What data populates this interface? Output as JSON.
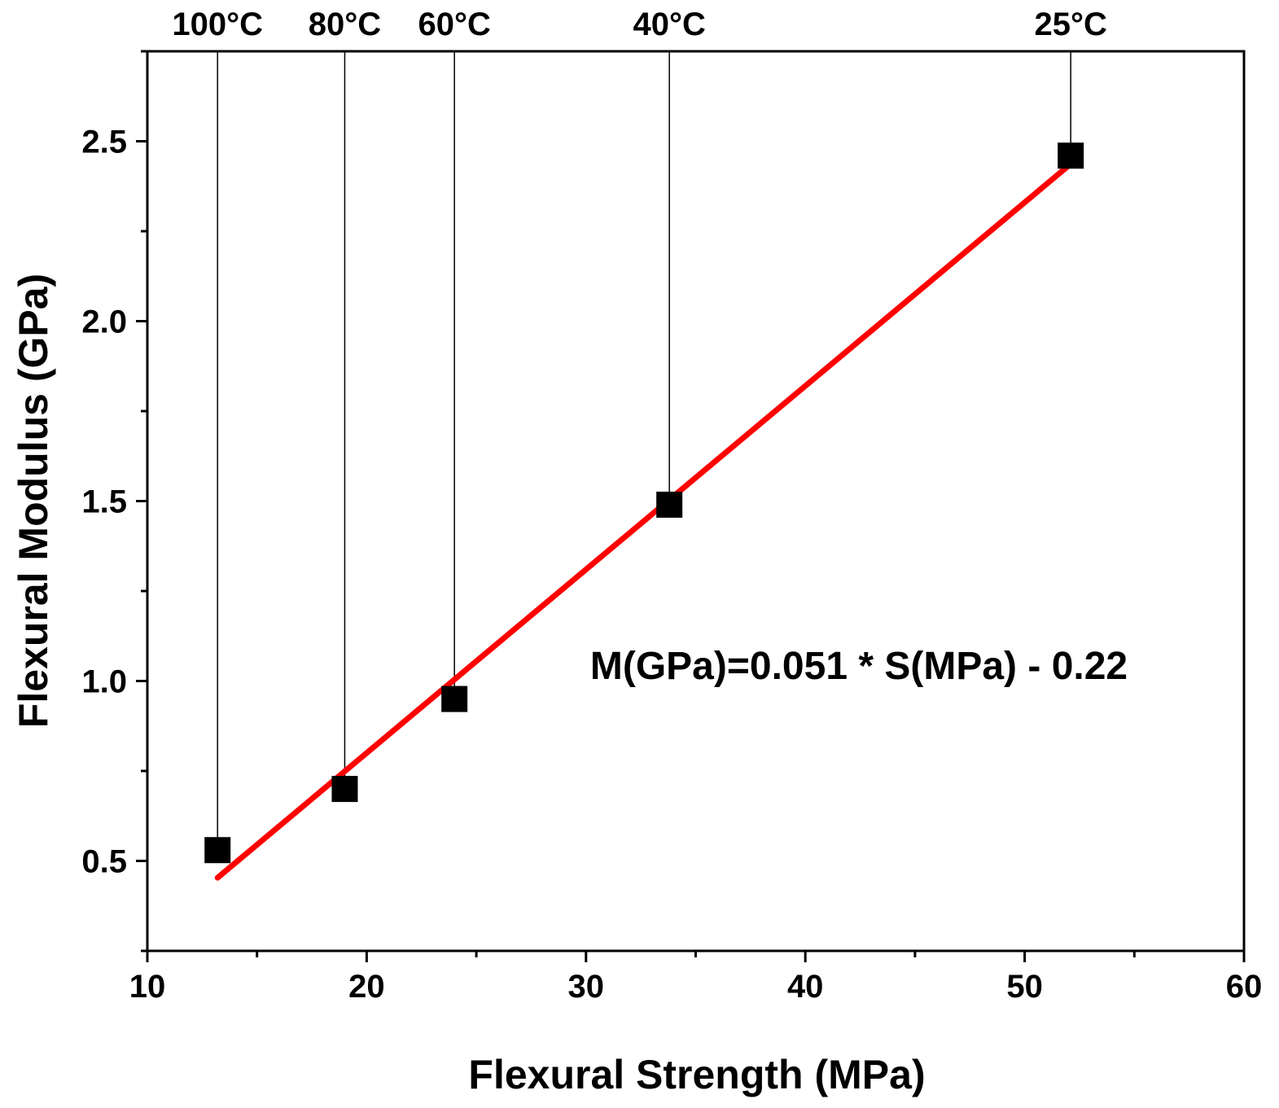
{
  "chart_data": {
    "type": "scatter",
    "title": "",
    "xlabel": "Flexural Strength (MPa)",
    "ylabel": "Flexural Modulus (GPa)",
    "xlim": [
      10,
      60
    ],
    "ylim": [
      0.25,
      2.75
    ],
    "xticks": [
      10,
      20,
      30,
      40,
      50,
      60
    ],
    "xtick_labels": [
      "10",
      "20",
      "30",
      "40",
      "50",
      "60"
    ],
    "yticks": [
      0.5,
      1.0,
      1.5,
      2.0,
      2.5
    ],
    "ytick_labels": [
      "0.5",
      "1.0",
      "1.5",
      "2.0",
      "2.5"
    ],
    "grid": false,
    "series": [
      {
        "marker": "square",
        "color": "#000000",
        "points": [
          {
            "x": 13.2,
            "y": 0.53,
            "label": "100°C"
          },
          {
            "x": 19.0,
            "y": 0.7,
            "label": "80°C"
          },
          {
            "x": 24.0,
            "y": 0.95,
            "label": "60°C"
          },
          {
            "x": 33.8,
            "y": 1.49,
            "label": "40°C"
          },
          {
            "x": 52.1,
            "y": 2.46,
            "label": "25°C"
          }
        ]
      }
    ],
    "fit_line": {
      "color": "#ff0000",
      "slope": 0.051,
      "intercept": -0.22,
      "x_range": [
        13.2,
        52.1
      ]
    },
    "annotation": "M(GPa)=0.051 * S(MPa) - 0.22"
  }
}
